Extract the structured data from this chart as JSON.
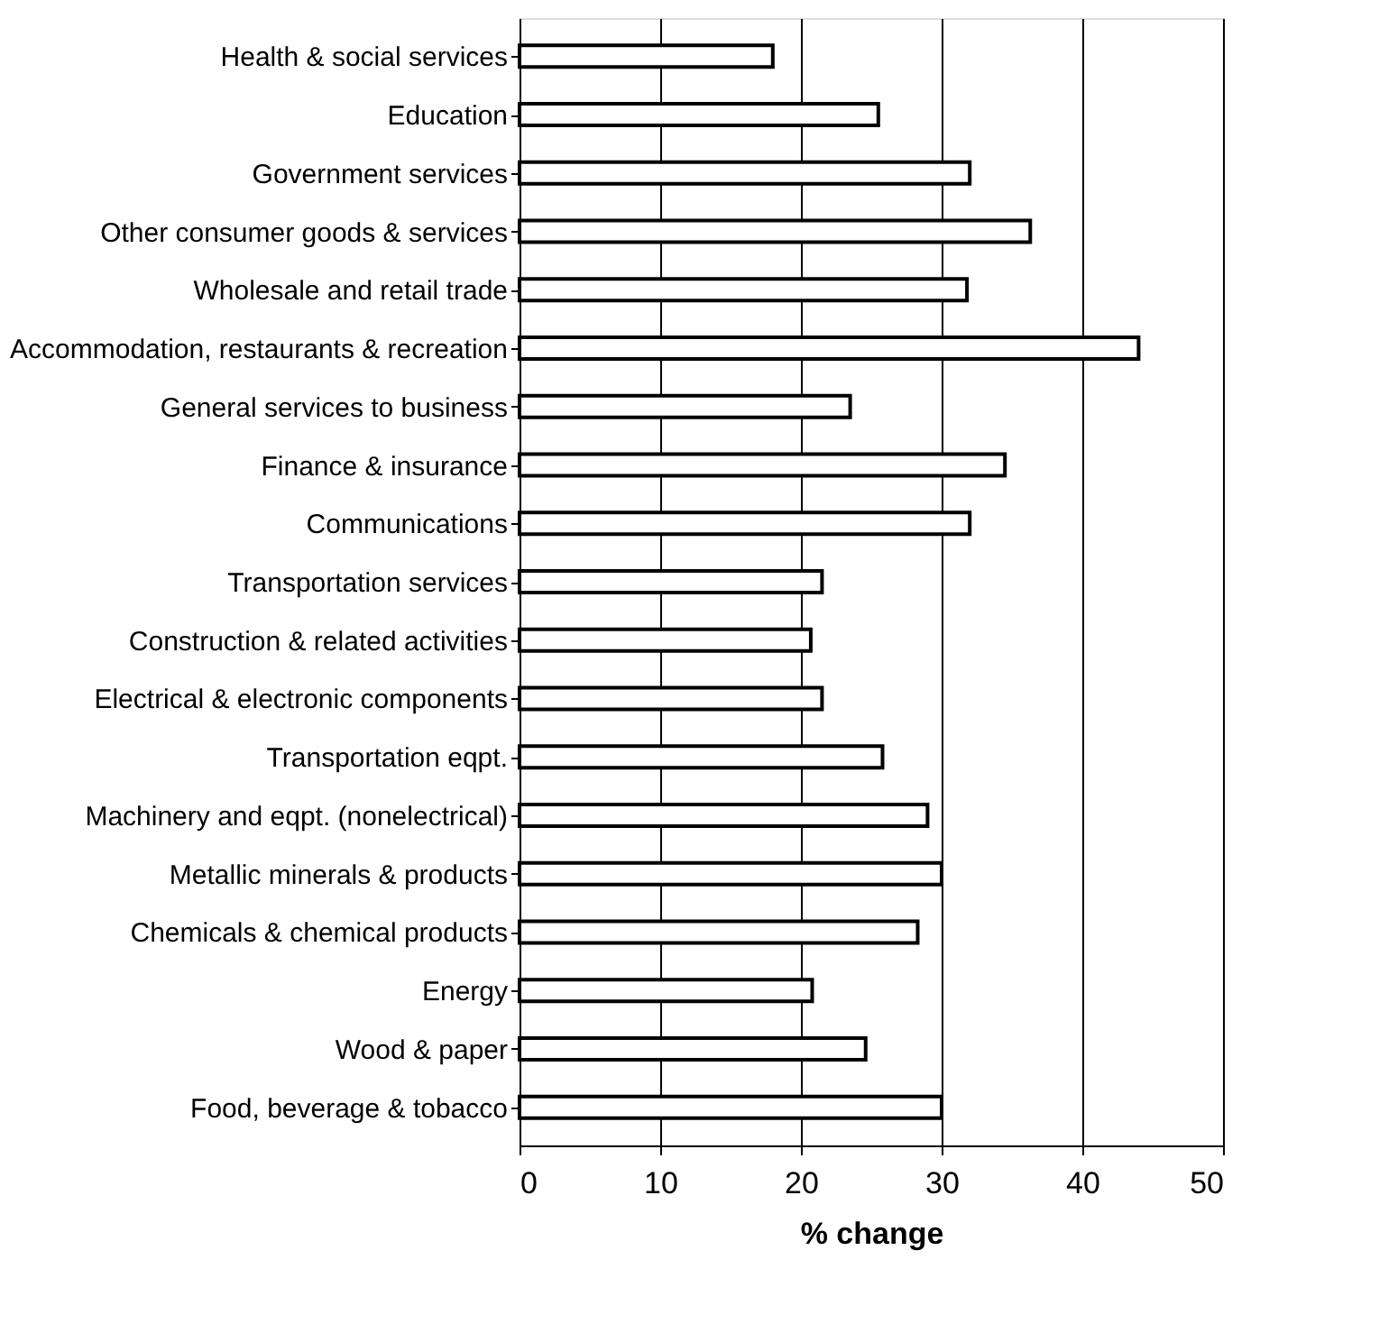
{
  "chart_data": {
    "type": "bar",
    "orientation": "horizontal",
    "xlabel": "% change",
    "categories": [
      "Health & social services",
      "Education",
      "Government services",
      "Other consumer goods & services",
      "Wholesale and retail trade",
      "Accommodation, restaurants & recreation",
      "General services to business",
      "Finance & insurance",
      "Communications",
      "Transportation services",
      "Construction & related activities",
      "Electrical & electronic components",
      "Transportation eqpt.",
      "Machinery and eqpt. (nonelectrical)",
      "Metallic minerals & products",
      "Chemicals & chemical products",
      "Energy",
      "Wood & paper",
      "Food, beverage & tobacco"
    ],
    "values": [
      18,
      25.5,
      32,
      36.3,
      31.8,
      44,
      23.5,
      34.5,
      32,
      21.5,
      20.7,
      21.5,
      25.8,
      29,
      30,
      28.3,
      20.8,
      24.6,
      30
    ],
    "color": "#ffffff",
    "xlim": [
      0,
      50
    ],
    "xticks": [
      0,
      10,
      20,
      30,
      40,
      50
    ],
    "grid": "x",
    "legend": false
  }
}
